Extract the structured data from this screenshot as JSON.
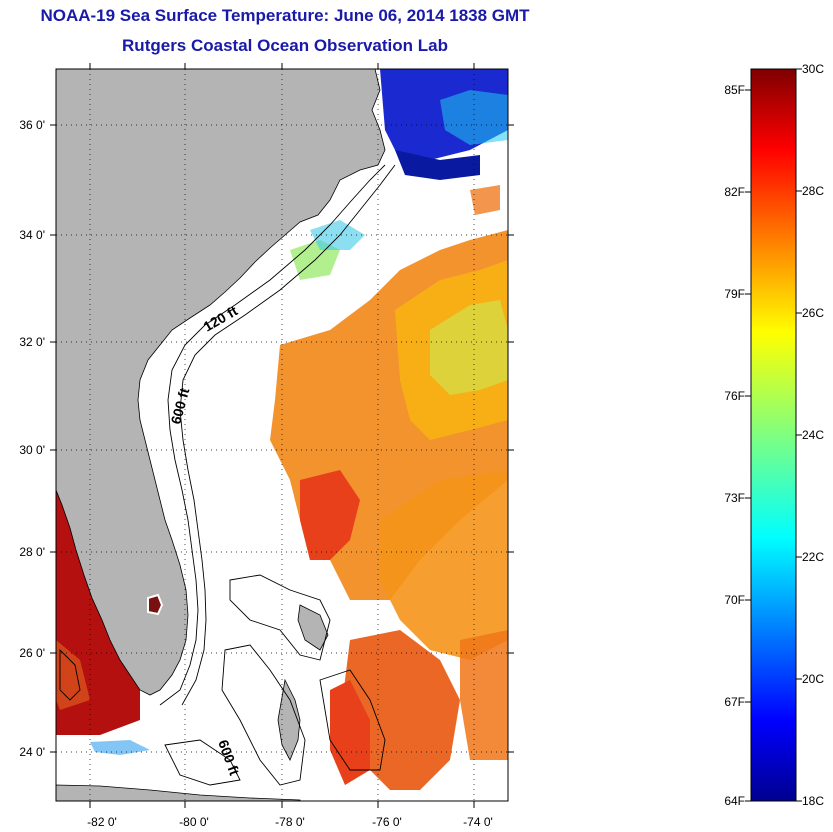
{
  "header": {
    "title": "NOAA-19 Sea Surface Temperature:  June 06, 2014 1838 GMT",
    "subtitle": "Rutgers Coastal Ocean Observation Lab"
  },
  "map": {
    "lat_ticks": [
      "36 0'",
      "34 0'",
      "32 0'",
      "30 0'",
      "28 0'",
      "26 0'",
      "24 0'"
    ],
    "lon_ticks": [
      "-82 0'",
      "-80 0'",
      "-78 0'",
      "-76 0'",
      "-74 0'"
    ],
    "contour_labels": [
      "120 ft",
      "600 ft",
      "600 ft"
    ],
    "colors": {
      "land": "#b4b4b4",
      "cloud": "#ffffff",
      "warm": "#e64a12",
      "cool": "#f8b214"
    }
  },
  "colorbar": {
    "fahrenheit": [
      "85F",
      "82F",
      "79F",
      "76F",
      "73F",
      "70F",
      "67F",
      "64F"
    ],
    "celsius": [
      "30C",
      "28C",
      "26C",
      "24C",
      "22C",
      "20C",
      "18C"
    ],
    "range_c": [
      18,
      30
    ]
  }
}
